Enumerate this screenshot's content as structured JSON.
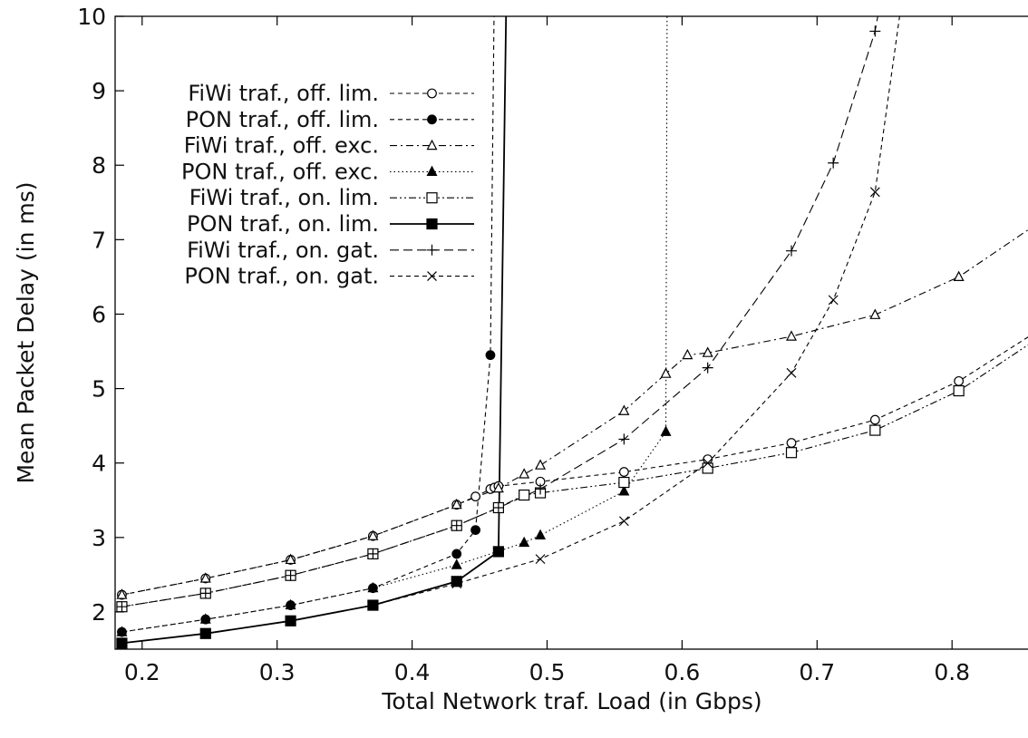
{
  "chart_data": {
    "type": "line",
    "xlabel": "Total Network traf. Load (in Gbps)",
    "ylabel": "Mean Packet Delay (in ms)",
    "xlim": [
      0.18,
      0.865
    ],
    "ylim": [
      1.5,
      10
    ],
    "xticks": [
      0.2,
      0.3,
      0.4,
      0.5,
      0.6,
      0.7,
      0.8
    ],
    "xtick_labels": [
      "0.2",
      "0.3",
      "0.4",
      "0.5",
      "0.6",
      "0.7",
      "0.8"
    ],
    "yticks": [
      2,
      3,
      4,
      5,
      6,
      7,
      8,
      9,
      10
    ],
    "ytick_labels": [
      "2",
      "3",
      "4",
      "5",
      "6",
      "7",
      "8",
      "9",
      "10"
    ],
    "grid": false,
    "legend_position": "top-left",
    "series": [
      {
        "name": "FiWi traf., off. lim.",
        "marker": "open-circle",
        "dash": "dashed",
        "x": [
          0.185,
          0.247,
          0.31,
          0.371,
          0.433,
          0.447,
          0.458,
          0.461,
          0.464,
          0.495,
          0.557,
          0.619,
          0.681,
          0.743,
          0.805,
          0.87
        ],
        "y": [
          2.23,
          2.45,
          2.7,
          3.02,
          3.44,
          3.55,
          3.65,
          3.67,
          3.69,
          3.75,
          3.88,
          4.05,
          4.27,
          4.58,
          5.1,
          5.85
        ]
      },
      {
        "name": "PON traf., off. lim.",
        "marker": "filled-circle",
        "dash": "dashed",
        "x": [
          0.185,
          0.247,
          0.31,
          0.371,
          0.433,
          0.447,
          0.458,
          0.461
        ],
        "y": [
          1.73,
          1.9,
          2.09,
          2.32,
          2.78,
          3.1,
          5.45,
          10.5
        ]
      },
      {
        "name": "FiWi traf., off. exc.",
        "marker": "open-triangle",
        "dash": "dashdot",
        "x": [
          0.185,
          0.247,
          0.31,
          0.371,
          0.433,
          0.464,
          0.483,
          0.495,
          0.557,
          0.588,
          0.604,
          0.619,
          0.681,
          0.743,
          0.805,
          0.87
        ],
        "y": [
          2.23,
          2.45,
          2.7,
          3.02,
          3.44,
          3.66,
          3.85,
          3.97,
          4.7,
          5.2,
          5.45,
          5.48,
          5.7,
          5.99,
          6.5,
          7.3
        ]
      },
      {
        "name": "PON traf., off. exc.",
        "marker": "filled-triangle",
        "dash": "dotted",
        "x": [
          0.185,
          0.247,
          0.31,
          0.371,
          0.433,
          0.483,
          0.495,
          0.557,
          0.588,
          0.589
        ],
        "y": [
          1.73,
          1.9,
          2.09,
          2.32,
          2.63,
          2.93,
          3.03,
          3.62,
          4.42,
          10.5
        ]
      },
      {
        "name": "FiWi traf., on. lim.",
        "marker": "open-square",
        "dash": "dashdotdot",
        "x": [
          0.185,
          0.247,
          0.31,
          0.371,
          0.433,
          0.464,
          0.483,
          0.495,
          0.557,
          0.619,
          0.681,
          0.743,
          0.805,
          0.87
        ],
        "y": [
          2.07,
          2.25,
          2.49,
          2.78,
          3.16,
          3.4,
          3.57,
          3.6,
          3.74,
          3.93,
          4.14,
          4.44,
          4.97,
          5.75
        ]
      },
      {
        "name": "PON traf., on. lim.",
        "marker": "filled-square",
        "dash": "solid",
        "x": [
          0.185,
          0.247,
          0.31,
          0.371,
          0.433,
          0.464,
          0.47
        ],
        "y": [
          1.58,
          1.71,
          1.88,
          2.09,
          2.41,
          2.81,
          10.5
        ]
      },
      {
        "name": "FiWi traf., on. gat.",
        "marker": "plus",
        "dash": "longdash",
        "x": [
          0.185,
          0.247,
          0.31,
          0.371,
          0.433,
          0.464,
          0.495,
          0.557,
          0.619,
          0.681,
          0.712,
          0.743,
          0.75
        ],
        "y": [
          2.07,
          2.25,
          2.49,
          2.78,
          3.16,
          3.4,
          3.65,
          4.32,
          5.28,
          6.85,
          8.03,
          9.8,
          10.5
        ]
      },
      {
        "name": "PON traf., on. gat.",
        "marker": "cross",
        "dash": "dashed",
        "x": [
          0.185,
          0.247,
          0.31,
          0.371,
          0.433,
          0.495,
          0.557,
          0.619,
          0.681,
          0.712,
          0.743,
          0.765
        ],
        "y": [
          1.58,
          1.71,
          1.88,
          2.09,
          2.38,
          2.71,
          3.22,
          4.0,
          5.21,
          6.19,
          7.64,
          10.5
        ]
      }
    ]
  }
}
